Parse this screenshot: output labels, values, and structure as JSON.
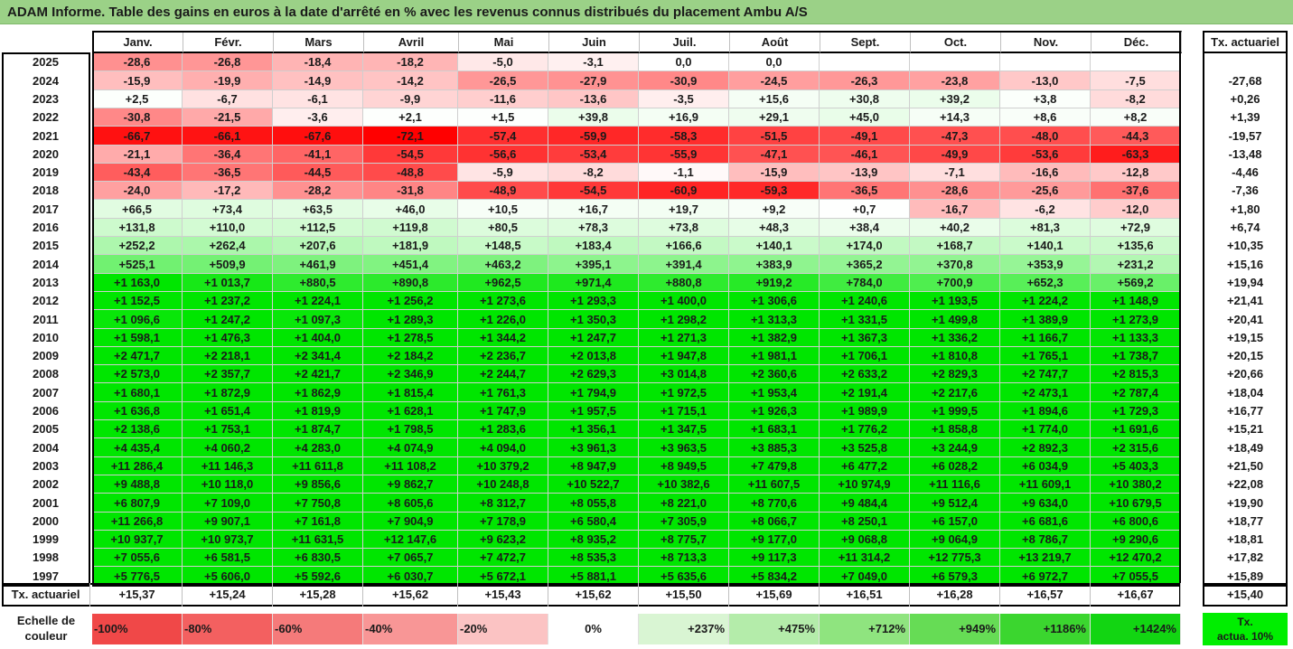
{
  "title": "ADAM Informe. Table des gains en euros à la date d'arrêté en % avec les revenus connus distribués du placement Ambu A/S",
  "months": [
    "Janv.",
    "Févr.",
    "Mars",
    "Avril",
    "Mai",
    "Juin",
    "Juil.",
    "Août",
    "Sept.",
    "Oct.",
    "Nov.",
    "Déc."
  ],
  "tx_header": "Tx. actuariel",
  "rows": [
    {
      "year": "2025",
      "values": [
        "-28,6",
        "-26,8",
        "-18,4",
        "-18,2",
        "-5,0",
        "-3,1",
        "0,0",
        "0,0",
        "",
        "",
        "",
        ""
      ],
      "tx": ""
    },
    {
      "year": "2024",
      "values": [
        "-15,9",
        "-19,9",
        "-14,9",
        "-14,2",
        "-26,5",
        "-27,9",
        "-30,9",
        "-24,5",
        "-26,3",
        "-23,8",
        "-13,0",
        "-7,5"
      ],
      "tx": "-27,68"
    },
    {
      "year": "2023",
      "values": [
        "+2,5",
        "-6,7",
        "-6,1",
        "-9,9",
        "-11,6",
        "-13,6",
        "-3,5",
        "+15,6",
        "+30,8",
        "+39,2",
        "+3,8",
        "-8,2"
      ],
      "tx": "+0,26"
    },
    {
      "year": "2022",
      "values": [
        "-30,8",
        "-21,5",
        "-3,6",
        "+2,1",
        "+1,5",
        "+39,8",
        "+16,9",
        "+29,1",
        "+45,0",
        "+14,3",
        "+8,6",
        "+8,2"
      ],
      "tx": "+1,39"
    },
    {
      "year": "2021",
      "values": [
        "-66,7",
        "-66,1",
        "-67,6",
        "-72,1",
        "-57,4",
        "-59,9",
        "-58,3",
        "-51,5",
        "-49,1",
        "-47,3",
        "-48,0",
        "-44,3"
      ],
      "tx": "-19,57"
    },
    {
      "year": "2020",
      "values": [
        "-21,1",
        "-36,4",
        "-41,1",
        "-54,5",
        "-56,6",
        "-53,4",
        "-55,9",
        "-47,1",
        "-46,1",
        "-49,9",
        "-53,6",
        "-63,3"
      ],
      "tx": "-13,48"
    },
    {
      "year": "2019",
      "values": [
        "-43,4",
        "-36,5",
        "-44,5",
        "-48,8",
        "-5,9",
        "-8,2",
        "-1,1",
        "-15,9",
        "-13,9",
        "-7,1",
        "-16,6",
        "-12,8"
      ],
      "tx": "-4,46"
    },
    {
      "year": "2018",
      "values": [
        "-24,0",
        "-17,2",
        "-28,2",
        "-31,8",
        "-48,9",
        "-54,5",
        "-60,9",
        "-59,3",
        "-36,5",
        "-28,6",
        "-25,6",
        "-37,6"
      ],
      "tx": "-7,36"
    },
    {
      "year": "2017",
      "values": [
        "+66,5",
        "+73,4",
        "+63,5",
        "+46,0",
        "+10,5",
        "+16,7",
        "+19,7",
        "+9,2",
        "+0,7",
        "-16,7",
        "-6,2",
        "-12,0"
      ],
      "tx": "+1,80"
    },
    {
      "year": "2016",
      "values": [
        "+131,8",
        "+110,0",
        "+112,5",
        "+119,8",
        "+80,5",
        "+78,3",
        "+73,8",
        "+48,3",
        "+38,4",
        "+40,2",
        "+81,3",
        "+72,9"
      ],
      "tx": "+6,74"
    },
    {
      "year": "2015",
      "values": [
        "+252,2",
        "+262,4",
        "+207,6",
        "+181,9",
        "+148,5",
        "+183,4",
        "+166,6",
        "+140,1",
        "+174,0",
        "+168,7",
        "+140,1",
        "+135,6"
      ],
      "tx": "+10,35"
    },
    {
      "year": "2014",
      "values": [
        "+525,1",
        "+509,9",
        "+461,9",
        "+451,4",
        "+463,2",
        "+395,1",
        "+391,4",
        "+383,9",
        "+365,2",
        "+370,8",
        "+353,9",
        "+231,2"
      ],
      "tx": "+15,16"
    },
    {
      "year": "2013",
      "values": [
        "+1 163,0",
        "+1 013,7",
        "+880,5",
        "+890,8",
        "+962,5",
        "+971,4",
        "+880,8",
        "+919,2",
        "+784,0",
        "+700,9",
        "+652,3",
        "+569,2"
      ],
      "tx": "+19,94"
    },
    {
      "year": "2012",
      "values": [
        "+1 152,5",
        "+1 237,2",
        "+1 224,1",
        "+1 256,2",
        "+1 273,6",
        "+1 293,3",
        "+1 400,0",
        "+1 306,6",
        "+1 240,6",
        "+1 193,5",
        "+1 224,2",
        "+1 148,9"
      ],
      "tx": "+21,41"
    },
    {
      "year": "2011",
      "values": [
        "+1 096,6",
        "+1 247,2",
        "+1 097,3",
        "+1 289,3",
        "+1 226,0",
        "+1 350,3",
        "+1 298,2",
        "+1 313,3",
        "+1 331,5",
        "+1 499,8",
        "+1 389,9",
        "+1 273,9"
      ],
      "tx": "+20,41"
    },
    {
      "year": "2010",
      "values": [
        "+1 598,1",
        "+1 476,3",
        "+1 404,0",
        "+1 278,5",
        "+1 344,2",
        "+1 247,7",
        "+1 271,3",
        "+1 382,9",
        "+1 367,3",
        "+1 336,2",
        "+1 166,7",
        "+1 133,3"
      ],
      "tx": "+19,15"
    },
    {
      "year": "2009",
      "values": [
        "+2 471,7",
        "+2 218,1",
        "+2 341,4",
        "+2 184,2",
        "+2 236,7",
        "+2 013,8",
        "+1 947,8",
        "+1 981,1",
        "+1 706,1",
        "+1 810,8",
        "+1 765,1",
        "+1 738,7"
      ],
      "tx": "+20,15"
    },
    {
      "year": "2008",
      "values": [
        "+2 573,0",
        "+2 357,7",
        "+2 421,7",
        "+2 346,9",
        "+2 244,7",
        "+2 629,3",
        "+3 014,8",
        "+2 360,6",
        "+2 633,2",
        "+2 829,3",
        "+2 747,7",
        "+2 815,3"
      ],
      "tx": "+20,66"
    },
    {
      "year": "2007",
      "values": [
        "+1 680,1",
        "+1 872,9",
        "+1 862,9",
        "+1 815,4",
        "+1 761,3",
        "+1 794,9",
        "+1 972,5",
        "+1 953,4",
        "+2 191,4",
        "+2 217,6",
        "+2 473,1",
        "+2 787,4"
      ],
      "tx": "+18,04"
    },
    {
      "year": "2006",
      "values": [
        "+1 636,8",
        "+1 651,4",
        "+1 819,9",
        "+1 628,1",
        "+1 747,9",
        "+1 957,5",
        "+1 715,1",
        "+1 926,3",
        "+1 989,9",
        "+1 999,5",
        "+1 894,6",
        "+1 729,3"
      ],
      "tx": "+16,77"
    },
    {
      "year": "2005",
      "values": [
        "+2 138,6",
        "+1 753,1",
        "+1 874,7",
        "+1 798,5",
        "+1 283,6",
        "+1 356,1",
        "+1 347,5",
        "+1 683,1",
        "+1 776,2",
        "+1 858,8",
        "+1 774,0",
        "+1 691,6"
      ],
      "tx": "+15,21"
    },
    {
      "year": "2004",
      "values": [
        "+4 435,4",
        "+4 060,2",
        "+4 283,0",
        "+4 074,9",
        "+4 094,0",
        "+3 961,3",
        "+3 963,5",
        "+3 885,3",
        "+3 525,8",
        "+3 244,9",
        "+2 892,3",
        "+2 315,6"
      ],
      "tx": "+18,49"
    },
    {
      "year": "2003",
      "values": [
        "+11 286,4",
        "+11 146,3",
        "+11 611,8",
        "+11 108,2",
        "+10 379,2",
        "+8 947,9",
        "+8 949,5",
        "+7 479,8",
        "+6 477,2",
        "+6 028,2",
        "+6 034,9",
        "+5 403,3"
      ],
      "tx": "+21,50"
    },
    {
      "year": "2002",
      "values": [
        "+9 488,8",
        "+10 118,0",
        "+9 856,6",
        "+9 862,7",
        "+10 248,8",
        "+10 522,7",
        "+10 382,6",
        "+11 607,5",
        "+10 974,9",
        "+11 116,6",
        "+11 609,1",
        "+10 380,2"
      ],
      "tx": "+22,08"
    },
    {
      "year": "2001",
      "values": [
        "+6 807,9",
        "+7 109,0",
        "+7 750,8",
        "+8 605,6",
        "+8 312,7",
        "+8 055,8",
        "+8 221,0",
        "+8 770,6",
        "+9 484,4",
        "+9 512,4",
        "+9 634,0",
        "+10 679,5"
      ],
      "tx": "+19,90"
    },
    {
      "year": "2000",
      "values": [
        "+11 266,8",
        "+9 907,1",
        "+7 161,8",
        "+7 904,9",
        "+7 178,9",
        "+6 580,4",
        "+7 305,9",
        "+8 066,7",
        "+8 250,1",
        "+6 157,0",
        "+6 681,6",
        "+6 800,6"
      ],
      "tx": "+18,77"
    },
    {
      "year": "1999",
      "values": [
        "+10 937,7",
        "+10 973,7",
        "+11 631,5",
        "+12 147,6",
        "+9 623,2",
        "+8 935,2",
        "+8 775,7",
        "+9 177,0",
        "+9 068,8",
        "+9 064,9",
        "+8 786,7",
        "+9 290,6"
      ],
      "tx": "+18,81"
    },
    {
      "year": "1998",
      "values": [
        "+7 055,6",
        "+6 581,5",
        "+6 830,5",
        "+7 065,7",
        "+7 472,7",
        "+8 535,3",
        "+8 713,3",
        "+9 117,3",
        "+11 314,2",
        "+12 775,3",
        "+13 219,7",
        "+12 470,2"
      ],
      "tx": "+17,82"
    },
    {
      "year": "1997",
      "values": [
        "+5 776,5",
        "+5 606,0",
        "+5 592,6",
        "+6 030,7",
        "+5 672,1",
        "+5 881,1",
        "+5 635,6",
        "+5 834,2",
        "+7 049,0",
        "+6 579,3",
        "+6 972,7",
        "+7 055,5"
      ],
      "tx": "+15,89"
    }
  ],
  "footer": {
    "label": "Tx. actuariel",
    "values": [
      "+15,37",
      "+15,24",
      "+15,28",
      "+15,62",
      "+15,43",
      "+15,62",
      "+15,50",
      "+15,69",
      "+16,51",
      "+16,28",
      "+16,57",
      "+16,67"
    ],
    "tx": "+15,40"
  },
  "scale": {
    "label_line1": "Echelle de",
    "label_line2": "couleur",
    "items": [
      {
        "label": "-100%",
        "color": "#f04848",
        "align": "left"
      },
      {
        "label": "-80%",
        "color": "#f36060",
        "align": "left"
      },
      {
        "label": "-60%",
        "color": "#f57a7a",
        "align": "left"
      },
      {
        "label": "-40%",
        "color": "#f89696",
        "align": "left"
      },
      {
        "label": "-20%",
        "color": "#fbc3c3",
        "align": "left"
      },
      {
        "label": "0%",
        "color": "#ffffff",
        "align": "center"
      },
      {
        "label": "+237%",
        "color": "#d9f5d3",
        "align": "right"
      },
      {
        "label": "+475%",
        "color": "#b4ecaa",
        "align": "right"
      },
      {
        "label": "+712%",
        "color": "#8fe47f",
        "align": "right"
      },
      {
        "label": "+949%",
        "color": "#66dc55",
        "align": "right"
      },
      {
        "label": "+1186%",
        "color": "#3bd62f",
        "align": "right"
      },
      {
        "label": "+1424%",
        "color": "#12d512",
        "align": "right"
      }
    ],
    "tx_line1": "Tx.",
    "tx_line2": "actua. 10%",
    "tx_color": "#00ee00"
  },
  "colors": {
    "title_bg": "#9bd187",
    "neg_max": "#ff0000",
    "pos_max": "#00e600",
    "neutral": "#ffffff"
  }
}
